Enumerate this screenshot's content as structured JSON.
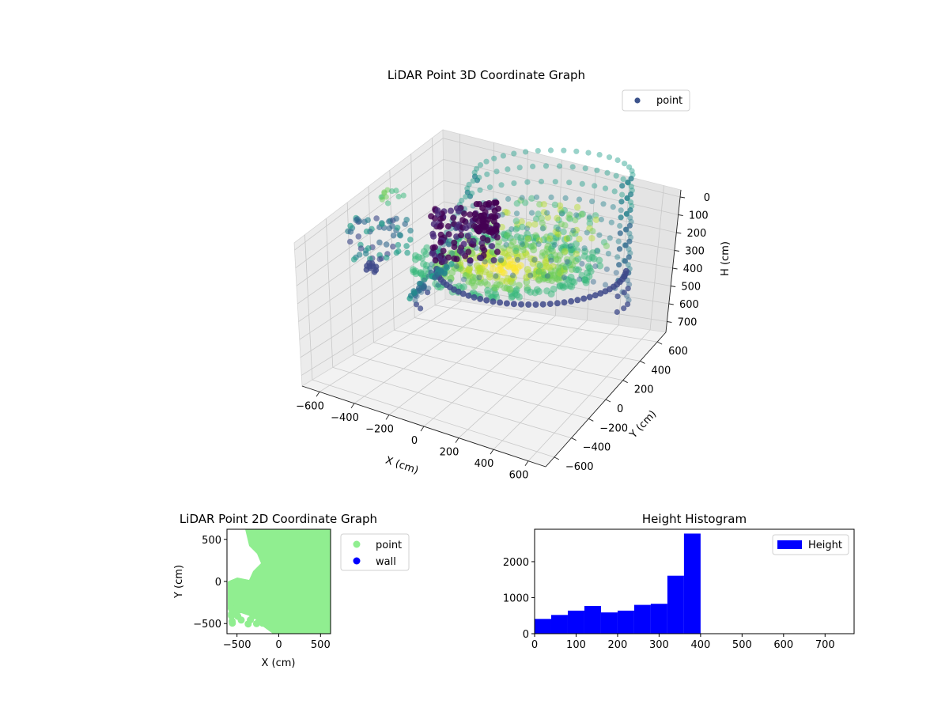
{
  "chart_data": [
    {
      "type": "scatter",
      "projection": "3d",
      "title": "LiDAR Point 3D Coordinate Graph",
      "xlabel": "X (cm)",
      "ylabel": "Y (cm)",
      "zlabel": "H (cm)",
      "xticks": [
        -600,
        -400,
        -200,
        0,
        200,
        400,
        600
      ],
      "yticks": [
        -600,
        -400,
        -200,
        0,
        200,
        400,
        600
      ],
      "zticks": [
        0,
        100,
        200,
        300,
        400,
        500,
        600,
        700
      ],
      "zaxis_inverted": true,
      "colormap": "viridis",
      "legend": {
        "entries": [
          "point"
        ],
        "position": "upper right",
        "marker_color": "#3b528b"
      },
      "grid": true
    },
    {
      "type": "scatter",
      "title": "LiDAR Point 2D Coordinate Graph",
      "xlabel": "X (cm)",
      "ylabel": "Y (cm)",
      "xlim": [
        -620,
        620
      ],
      "ylim": [
        -620,
        620
      ],
      "xticks": [
        -500,
        0,
        500
      ],
      "yticks": [
        -500,
        0,
        500
      ],
      "series": [
        {
          "name": "point",
          "color": "#90ee90"
        },
        {
          "name": "wall",
          "color": "#0000ff",
          "values": []
        }
      ],
      "legend": {
        "position": "outside right"
      }
    },
    {
      "type": "bar",
      "subtype": "histogram",
      "title": "Height Histogram",
      "xlim": [
        0,
        770
      ],
      "ylim": [
        0,
        2900
      ],
      "xticks": [
        0,
        100,
        200,
        300,
        400,
        500,
        600,
        700
      ],
      "yticks": [
        0,
        1000,
        2000
      ],
      "bin_edges": [
        0,
        40,
        80,
        120,
        160,
        200,
        240,
        280,
        320,
        360,
        400
      ],
      "values": [
        410,
        520,
        640,
        770,
        590,
        640,
        800,
        830,
        1610,
        2780
      ],
      "series": [
        {
          "name": "Height",
          "color": "#0000ff"
        }
      ],
      "legend": {
        "position": "upper right"
      }
    }
  ]
}
